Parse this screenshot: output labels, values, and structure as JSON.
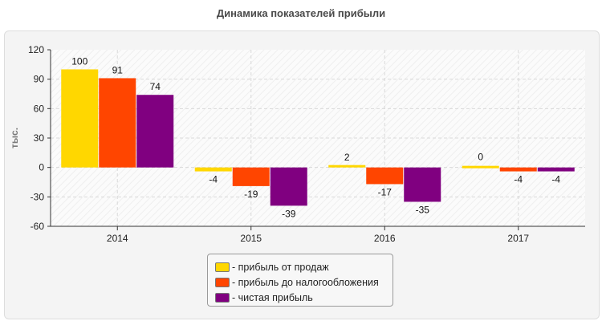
{
  "chart_data": {
    "type": "bar",
    "title": "Динамика показателей прибыли",
    "ylabel": "тыс.",
    "xlabel": "",
    "ylim": [
      -60,
      120
    ],
    "yticks": [
      120,
      90,
      60,
      30,
      0,
      -30,
      -60
    ],
    "categories": [
      "2014",
      "2015",
      "2016",
      "2017"
    ],
    "series": [
      {
        "name": "- прибыль от продаж",
        "color": "#FFD700",
        "values": [
          100,
          -4,
          2,
          0
        ]
      },
      {
        "name": "- прибыль до налогообложения",
        "color": "#FF4500",
        "values": [
          91,
          -19,
          -17,
          -4
        ]
      },
      {
        "name": "- чистая прибыль",
        "color": "#800080",
        "values": [
          74,
          -39,
          -35,
          -4
        ]
      }
    ],
    "grid": true,
    "legend": "bottom-center"
  }
}
